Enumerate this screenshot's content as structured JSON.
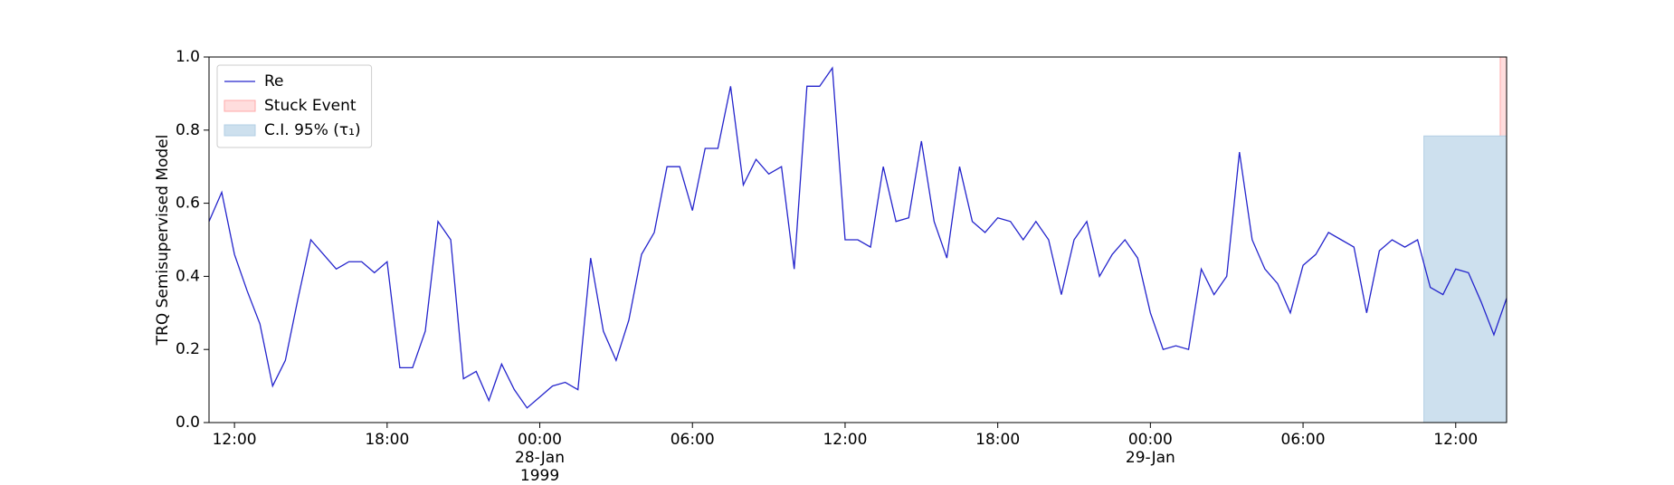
{
  "chart_data": {
    "type": "line",
    "ylabel": "TRQ Semisupervised Model",
    "x": [
      "1999-01-27T11:00",
      "1999-01-27T11:30",
      "1999-01-27T12:00",
      "1999-01-27T12:30",
      "1999-01-27T13:00",
      "1999-01-27T13:30",
      "1999-01-27T14:00",
      "1999-01-27T14:30",
      "1999-01-27T15:00",
      "1999-01-27T15:30",
      "1999-01-27T16:00",
      "1999-01-27T16:30",
      "1999-01-27T17:00",
      "1999-01-27T17:30",
      "1999-01-27T18:00",
      "1999-01-27T18:30",
      "1999-01-27T19:00",
      "1999-01-27T19:30",
      "1999-01-27T20:00",
      "1999-01-27T20:30",
      "1999-01-27T21:00",
      "1999-01-27T21:30",
      "1999-01-27T22:00",
      "1999-01-27T22:30",
      "1999-01-27T23:00",
      "1999-01-27T23:30",
      "1999-01-28T00:00",
      "1999-01-28T00:30",
      "1999-01-28T01:00",
      "1999-01-28T01:30",
      "1999-01-28T02:00",
      "1999-01-28T02:30",
      "1999-01-28T03:00",
      "1999-01-28T03:30",
      "1999-01-28T04:00",
      "1999-01-28T04:30",
      "1999-01-28T05:00",
      "1999-01-28T05:30",
      "1999-01-28T06:00",
      "1999-01-28T06:30",
      "1999-01-28T07:00",
      "1999-01-28T07:30",
      "1999-01-28T08:00",
      "1999-01-28T08:30",
      "1999-01-28T09:00",
      "1999-01-28T09:30",
      "1999-01-28T10:00",
      "1999-01-28T10:30",
      "1999-01-28T11:00",
      "1999-01-28T11:30",
      "1999-01-28T12:00",
      "1999-01-28T12:30",
      "1999-01-28T13:00",
      "1999-01-28T13:30",
      "1999-01-28T14:00",
      "1999-01-28T14:30",
      "1999-01-28T15:00",
      "1999-01-28T15:30",
      "1999-01-28T16:00",
      "1999-01-28T16:30",
      "1999-01-28T17:00",
      "1999-01-28T17:30",
      "1999-01-28T18:00",
      "1999-01-28T18:30",
      "1999-01-28T19:00",
      "1999-01-28T19:30",
      "1999-01-28T20:00",
      "1999-01-28T20:30",
      "1999-01-28T21:00",
      "1999-01-28T21:30",
      "1999-01-28T22:00",
      "1999-01-28T22:30",
      "1999-01-28T23:00",
      "1999-01-28T23:30",
      "1999-01-29T00:00",
      "1999-01-29T00:30",
      "1999-01-29T01:00",
      "1999-01-29T01:30",
      "1999-01-29T02:00",
      "1999-01-29T02:30",
      "1999-01-29T03:00",
      "1999-01-29T03:30",
      "1999-01-29T04:00",
      "1999-01-29T04:30",
      "1999-01-29T05:00",
      "1999-01-29T05:30",
      "1999-01-29T06:00",
      "1999-01-29T06:30",
      "1999-01-29T07:00",
      "1999-01-29T07:30",
      "1999-01-29T08:00",
      "1999-01-29T08:30",
      "1999-01-29T09:00",
      "1999-01-29T09:30",
      "1999-01-29T10:00",
      "1999-01-29T10:30",
      "1999-01-29T11:00",
      "1999-01-29T11:30",
      "1999-01-29T12:00",
      "1999-01-29T12:30",
      "1999-01-29T13:00",
      "1999-01-29T13:30",
      "1999-01-29T14:00"
    ],
    "series": [
      {
        "name": "Re",
        "color": "#2424cc",
        "values": [
          0.55,
          0.63,
          0.46,
          0.36,
          0.27,
          0.1,
          0.17,
          0.34,
          0.5,
          0.46,
          0.42,
          0.44,
          0.44,
          0.41,
          0.44,
          0.15,
          0.15,
          0.25,
          0.55,
          0.5,
          0.12,
          0.14,
          0.06,
          0.16,
          0.09,
          0.04,
          0.07,
          0.1,
          0.11,
          0.09,
          0.45,
          0.25,
          0.17,
          0.28,
          0.46,
          0.52,
          0.7,
          0.7,
          0.58,
          0.75,
          0.75,
          0.92,
          0.65,
          0.72,
          0.68,
          0.7,
          0.42,
          0.92,
          0.92,
          0.97,
          0.5,
          0.5,
          0.48,
          0.7,
          0.55,
          0.56,
          0.77,
          0.55,
          0.45,
          0.7,
          0.55,
          0.52,
          0.56,
          0.55,
          0.5,
          0.55,
          0.5,
          0.35,
          0.5,
          0.55,
          0.4,
          0.46,
          0.5,
          0.45,
          0.3,
          0.2,
          0.21,
          0.2,
          0.42,
          0.35,
          0.4,
          0.74,
          0.5,
          0.42,
          0.38,
          0.3,
          0.43,
          0.46,
          0.52,
          0.5,
          0.48,
          0.3,
          0.47,
          0.5,
          0.48,
          0.5,
          0.37,
          0.35,
          0.42,
          0.41,
          0.33,
          0.24,
          0.34
        ]
      }
    ],
    "spans": [
      {
        "name": "Stuck Event",
        "color": "#ffdddd",
        "edge": "#ffaaaa",
        "start": "1999-01-29T13:45",
        "end": "1999-01-29T14:00"
      },
      {
        "name": "C.I. 95% (τ₁)",
        "color": "#cde0ee",
        "edge": "#b3cfe4",
        "start": "1999-01-29T10:45",
        "end": "1999-01-29T14:00",
        "y_top": 0.784
      }
    ],
    "xlim": [
      "1999-01-27T11:00",
      "1999-01-29T14:00"
    ],
    "xticks": [
      {
        "value": "1999-01-27T12:00",
        "label": "12:00"
      },
      {
        "value": "1999-01-27T18:00",
        "label": "18:00"
      },
      {
        "value": "1999-01-28T00:00",
        "label": "00:00\n28-Jan\n1999"
      },
      {
        "value": "1999-01-28T06:00",
        "label": "06:00"
      },
      {
        "value": "1999-01-28T12:00",
        "label": "12:00"
      },
      {
        "value": "1999-01-28T18:00",
        "label": "18:00"
      },
      {
        "value": "1999-01-29T00:00",
        "label": "00:00\n29-Jan"
      },
      {
        "value": "1999-01-29T06:00",
        "label": "06:00"
      },
      {
        "value": "1999-01-29T12:00",
        "label": "12:00"
      }
    ],
    "ylim": [
      0,
      1
    ],
    "yticks": [
      {
        "value": 0,
        "label": "0.0"
      },
      {
        "value": 0.2,
        "label": "0.2"
      },
      {
        "value": 0.4,
        "label": "0.4"
      },
      {
        "value": 0.6,
        "label": "0.6"
      },
      {
        "value": 0.8,
        "label": "0.8"
      },
      {
        "value": 1,
        "label": "1.0"
      }
    ],
    "legend": "upper left"
  }
}
